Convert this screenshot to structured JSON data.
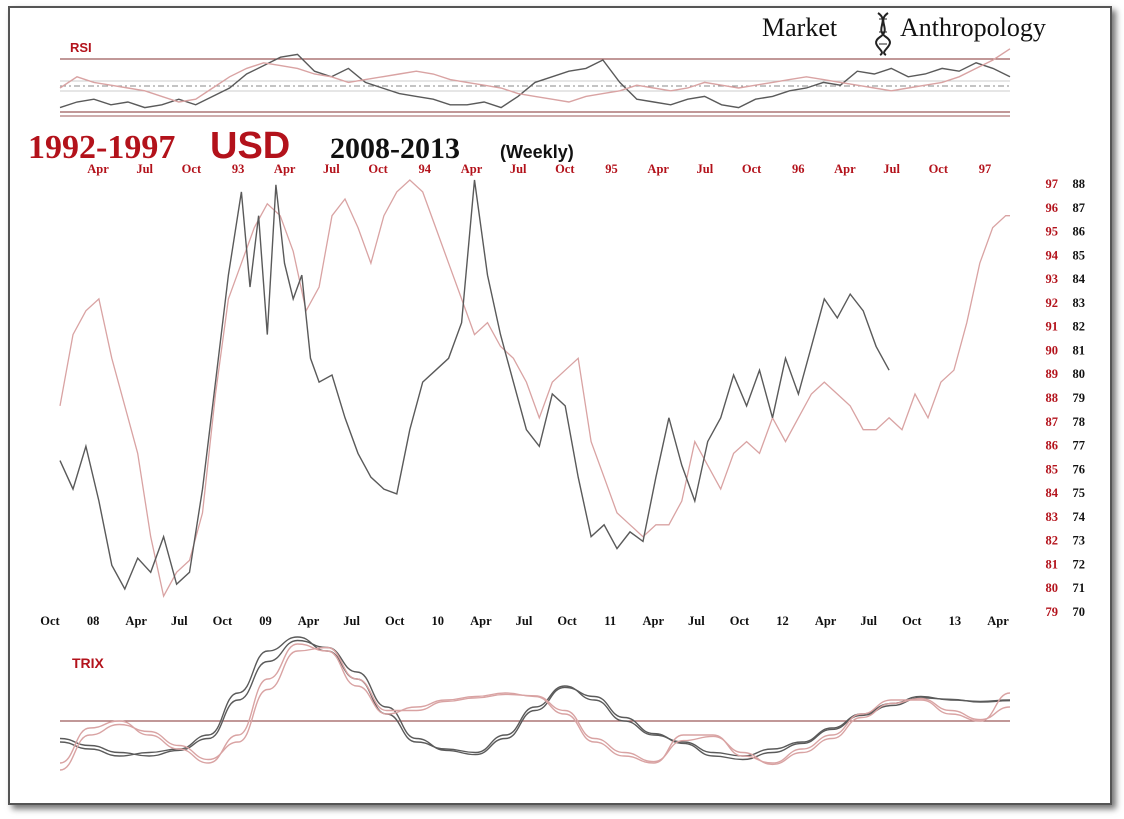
{
  "brand": {
    "left": "Market",
    "right": "Anthropology",
    "icon": "dna-helix-icon"
  },
  "title": {
    "part1": "1992-1997",
    "part2": "USD",
    "part3": "2008-2013",
    "part4": "(Weekly)"
  },
  "colors": {
    "red": "#b3121b",
    "series_red": "#d9a3a3",
    "series_black": "#5a5a5a",
    "rsi_fill_black": "#777777",
    "rsi_fill_red": "#e8b3b3"
  },
  "chart_data": [
    {
      "type": "line",
      "name": "price",
      "top_axis_ticks": [
        "Apr",
        "Jul",
        "Oct",
        "93",
        "Apr",
        "Jul",
        "Oct",
        "94",
        "Apr",
        "Jul",
        "Oct",
        "95",
        "Apr",
        "Jul",
        "Oct",
        "96",
        "Apr",
        "Jul",
        "Oct",
        "97"
      ],
      "bottom_axis_ticks": [
        "Oct",
        "08",
        "Apr",
        "Jul",
        "Oct",
        "09",
        "Apr",
        "Jul",
        "Oct",
        "10",
        "Apr",
        "Jul",
        "Oct",
        "11",
        "Apr",
        "Jul",
        "Oct",
        "12",
        "Apr",
        "Jul",
        "Oct",
        "13",
        "Apr"
      ],
      "right_axis_red": [
        "97",
        "96",
        "95",
        "94",
        "93",
        "92",
        "91",
        "90",
        "89",
        "88",
        "87",
        "86",
        "85",
        "84",
        "83",
        "82",
        "81",
        "80",
        "79"
      ],
      "right_axis_black": [
        "88",
        "87",
        "86",
        "85",
        "84",
        "83",
        "82",
        "81",
        "80",
        "79",
        "78",
        "77",
        "76",
        "75",
        "74",
        "73",
        "72",
        "71",
        "70"
      ],
      "ylim_black": [
        70,
        88
      ],
      "ylim_red": [
        79,
        97
      ],
      "xlim": [
        0,
        22
      ],
      "series": [
        {
          "color": "black",
          "x": [
            0,
            0.3,
            0.6,
            0.9,
            1.2,
            1.5,
            1.8,
            2.1,
            2.4,
            2.7,
            3.0,
            3.3,
            3.6,
            3.9,
            4.2,
            4.4,
            4.6,
            4.8,
            5.0,
            5.2,
            5.4,
            5.6,
            5.8,
            6.0,
            6.3,
            6.6,
            6.9,
            7.2,
            7.5,
            7.8,
            8.1,
            8.4,
            8.7,
            9.0,
            9.3,
            9.6,
            9.9,
            10.2,
            10.5,
            10.8,
            11.1,
            11.4,
            11.7,
            12.0,
            12.3,
            12.6,
            12.9,
            13.2,
            13.5,
            13.8,
            14.1,
            14.4,
            14.7,
            15.0,
            15.3,
            15.6,
            15.9,
            16.2,
            16.5,
            16.8,
            17.1,
            17.4,
            17.7,
            18.0,
            18.3,
            18.6,
            18.9,
            19.2
          ],
          "values": [
            76.2,
            75.0,
            76.8,
            74.5,
            71.8,
            70.8,
            72.1,
            71.5,
            73.0,
            71.0,
            71.5,
            75.0,
            79.5,
            84.0,
            87.5,
            83.5,
            86.5,
            81.5,
            87.8,
            84.5,
            83.0,
            84.0,
            80.5,
            79.5,
            79.8,
            78.0,
            76.5,
            75.5,
            75.0,
            74.8,
            77.5,
            79.5,
            80.0,
            80.5,
            82.0,
            88.0,
            84.0,
            81.5,
            79.5,
            77.5,
            76.8,
            79.0,
            78.5,
            75.5,
            73.0,
            73.5,
            72.5,
            73.2,
            72.8,
            75.5,
            78.0,
            76.0,
            74.5,
            77.0,
            78.0,
            79.8,
            78.5,
            80.0,
            78.0,
            80.5,
            79.0,
            81.0,
            83.0,
            82.2,
            83.2,
            82.5,
            81.0,
            80.0
          ]
        },
        {
          "color": "red",
          "x": [
            0,
            0.3,
            0.6,
            0.9,
            1.2,
            1.5,
            1.8,
            2.1,
            2.4,
            2.7,
            3.0,
            3.3,
            3.6,
            3.9,
            4.2,
            4.5,
            4.8,
            5.1,
            5.4,
            5.7,
            6.0,
            6.3,
            6.6,
            6.9,
            7.2,
            7.5,
            7.8,
            8.1,
            8.4,
            8.7,
            9.0,
            9.3,
            9.6,
            9.9,
            10.2,
            10.5,
            10.8,
            11.1,
            11.4,
            11.7,
            12.0,
            12.3,
            12.6,
            12.9,
            13.2,
            13.5,
            13.8,
            14.1,
            14.4,
            14.7,
            15.0,
            15.3,
            15.6,
            15.9,
            16.2,
            16.5,
            16.8,
            17.1,
            17.4,
            17.7,
            18.0,
            18.3,
            18.6,
            18.9,
            19.2,
            19.5,
            19.8,
            20.1,
            20.4,
            20.7,
            21.0,
            21.3,
            21.6,
            21.9,
            22.0
          ],
          "values": [
            87.5,
            90.5,
            91.5,
            92.0,
            89.5,
            87.5,
            85.5,
            82.0,
            79.5,
            80.5,
            81.0,
            83.0,
            88.0,
            92.0,
            93.5,
            95.0,
            96.0,
            95.5,
            94.0,
            91.5,
            92.5,
            95.5,
            96.2,
            95.0,
            93.5,
            95.5,
            96.5,
            97.0,
            96.5,
            95.0,
            93.5,
            92.0,
            90.5,
            91.0,
            90.0,
            89.5,
            88.5,
            87.0,
            88.5,
            89.0,
            89.5,
            86.0,
            84.5,
            83.0,
            82.5,
            82.0,
            82.5,
            82.5,
            83.5,
            86.0,
            85.0,
            84.0,
            85.5,
            86.0,
            85.5,
            87.0,
            86.0,
            87.0,
            88.0,
            88.5,
            88.0,
            87.5,
            86.5,
            86.5,
            87.0,
            86.5,
            88.0,
            87.0,
            88.5,
            89.0,
            91.0,
            93.5,
            95.0,
            95.5,
            95.5
          ]
        }
      ]
    },
    {
      "type": "line",
      "name": "RSI",
      "label": "RSI",
      "series": [
        {
          "color": "black",
          "values": [
            0.15,
            0.25,
            0.3,
            0.2,
            0.25,
            0.15,
            0.2,
            0.3,
            0.2,
            0.35,
            0.5,
            0.75,
            0.9,
            1.05,
            1.1,
            0.8,
            0.7,
            0.85,
            0.6,
            0.5,
            0.4,
            0.35,
            0.3,
            0.2,
            0.2,
            0.25,
            0.15,
            0.35,
            0.6,
            0.7,
            0.8,
            0.85,
            1.0,
            0.6,
            0.3,
            0.25,
            0.2,
            0.3,
            0.35,
            0.2,
            0.15,
            0.3,
            0.35,
            0.45,
            0.5,
            0.6,
            0.55,
            0.8,
            0.75,
            0.85,
            0.7,
            0.75,
            0.85,
            0.8,
            0.95,
            0.85,
            0.7
          ]
        },
        {
          "color": "red",
          "values": [
            0.5,
            0.7,
            0.6,
            0.55,
            0.5,
            0.45,
            0.35,
            0.25,
            0.3,
            0.5,
            0.7,
            0.85,
            0.95,
            0.9,
            0.85,
            0.75,
            0.7,
            0.6,
            0.65,
            0.7,
            0.75,
            0.8,
            0.75,
            0.65,
            0.6,
            0.55,
            0.5,
            0.4,
            0.35,
            0.3,
            0.25,
            0.35,
            0.4,
            0.45,
            0.55,
            0.5,
            0.45,
            0.5,
            0.6,
            0.55,
            0.5,
            0.55,
            0.6,
            0.65,
            0.7,
            0.65,
            0.6,
            0.55,
            0.5,
            0.45,
            0.5,
            0.55,
            0.6,
            0.7,
            0.85,
            1.0,
            1.2
          ]
        }
      ]
    },
    {
      "type": "line",
      "name": "TRIX",
      "label": "TRIX",
      "series": [
        {
          "color": "black",
          "values": [
            -0.3,
            -0.4,
            -0.5,
            -0.45,
            -0.4,
            -0.2,
            0.4,
            1.0,
            1.2,
            1.0,
            0.6,
            0.1,
            -0.3,
            -0.4,
            -0.45,
            -0.2,
            0.2,
            0.5,
            0.3,
            0.0,
            -0.2,
            -0.3,
            -0.45,
            -0.5,
            -0.4,
            -0.3,
            -0.1,
            0.1,
            0.25,
            0.35,
            0.3,
            0.28,
            0.3
          ]
        },
        {
          "color": "black",
          "values": [
            -0.25,
            -0.35,
            -0.45,
            -0.5,
            -0.42,
            -0.25,
            0.3,
            0.85,
            1.15,
            1.05,
            0.7,
            0.2,
            -0.25,
            -0.42,
            -0.48,
            -0.25,
            0.15,
            0.48,
            0.35,
            0.05,
            -0.18,
            -0.32,
            -0.5,
            -0.55,
            -0.45,
            -0.32,
            -0.12,
            0.08,
            0.22,
            0.33,
            0.31,
            0.27,
            0.29
          ]
        },
        {
          "color": "red",
          "values": [
            -0.6,
            -0.1,
            0.0,
            -0.2,
            -0.4,
            -0.6,
            -0.2,
            0.6,
            1.1,
            1.0,
            0.5,
            0.1,
            0.2,
            0.3,
            0.35,
            0.4,
            0.35,
            0.1,
            -0.3,
            -0.5,
            -0.6,
            -0.2,
            -0.2,
            -0.5,
            -0.6,
            -0.4,
            -0.2,
            0.1,
            0.3,
            0.3,
            0.1,
            0.0,
            0.4
          ]
        },
        {
          "color": "red",
          "values": [
            -0.7,
            -0.2,
            -0.05,
            -0.15,
            -0.35,
            -0.55,
            -0.3,
            0.45,
            1.0,
            1.05,
            0.6,
            0.15,
            0.15,
            0.28,
            0.33,
            0.38,
            0.36,
            0.15,
            -0.25,
            -0.45,
            -0.58,
            -0.28,
            -0.22,
            -0.45,
            -0.62,
            -0.45,
            -0.25,
            0.05,
            0.25,
            0.32,
            0.15,
            0.02,
            0.2
          ]
        }
      ]
    }
  ]
}
